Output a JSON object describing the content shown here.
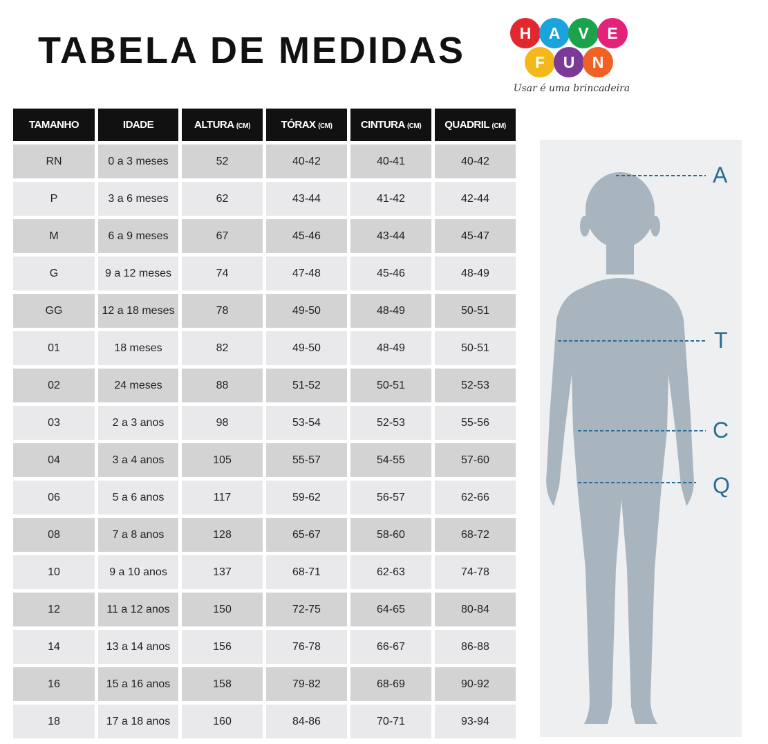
{
  "title": "TABELA DE MEDIDAS",
  "logo": {
    "letters": [
      "H",
      "A",
      "V",
      "E",
      "F",
      "U",
      "N"
    ],
    "colors": [
      "#e2282e",
      "#1aa3dc",
      "#1aa34a",
      "#e4227a",
      "#f5b81a",
      "#7b3a96",
      "#ef6125"
    ],
    "tagline": "Usar é uma brincadeira"
  },
  "table": {
    "headers": [
      {
        "label": "TAMANHO",
        "unit": ""
      },
      {
        "label": "IDADE",
        "unit": ""
      },
      {
        "label": "ALTURA",
        "unit": "(CM)"
      },
      {
        "label": "TÓRAX",
        "unit": "(CM)"
      },
      {
        "label": "CINTURA",
        "unit": "(CM)"
      },
      {
        "label": "QUADRIL",
        "unit": "(CM)"
      }
    ],
    "rows": [
      [
        "RN",
        "0 a 3 meses",
        "52",
        "40-42",
        "40-41",
        "40-42"
      ],
      [
        "P",
        "3 a 6 meses",
        "62",
        "43-44",
        "41-42",
        "42-44"
      ],
      [
        "M",
        "6 a 9 meses",
        "67",
        "45-46",
        "43-44",
        "45-47"
      ],
      [
        "G",
        "9 a 12 meses",
        "74",
        "47-48",
        "45-46",
        "48-49"
      ],
      [
        "GG",
        "12 a 18 meses",
        "78",
        "49-50",
        "48-49",
        "50-51"
      ],
      [
        "01",
        "18 meses",
        "82",
        "49-50",
        "48-49",
        "50-51"
      ],
      [
        "02",
        "24 meses",
        "88",
        "51-52",
        "50-51",
        "52-53"
      ],
      [
        "03",
        "2 a 3 anos",
        "98",
        "53-54",
        "52-53",
        "55-56"
      ],
      [
        "04",
        "3 a 4 anos",
        "105",
        "55-57",
        "54-55",
        "57-60"
      ],
      [
        "06",
        "5 a 6 anos",
        "117",
        "59-62",
        "56-57",
        "62-66"
      ],
      [
        "08",
        "7 a 8 anos",
        "128",
        "65-67",
        "58-60",
        "68-72"
      ],
      [
        "10",
        "9 a 10 anos",
        "137",
        "68-71",
        "62-63",
        "74-78"
      ],
      [
        "12",
        "11 a 12 anos",
        "150",
        "72-75",
        "64-65",
        "80-84"
      ],
      [
        "14",
        "13 a 14 anos",
        "156",
        "76-78",
        "66-67",
        "86-88"
      ],
      [
        "16",
        "15 a 16 anos",
        "158",
        "79-82",
        "68-69",
        "90-92"
      ],
      [
        "18",
        "17 a 18 anos",
        "160",
        "84-86",
        "70-71",
        "93-94"
      ]
    ]
  },
  "figure": {
    "labels": {
      "A": "A",
      "T": "T",
      "C": "C",
      "Q": "Q"
    },
    "line_color": "#2a6c93",
    "silhouette_color": "#a8b5be"
  }
}
